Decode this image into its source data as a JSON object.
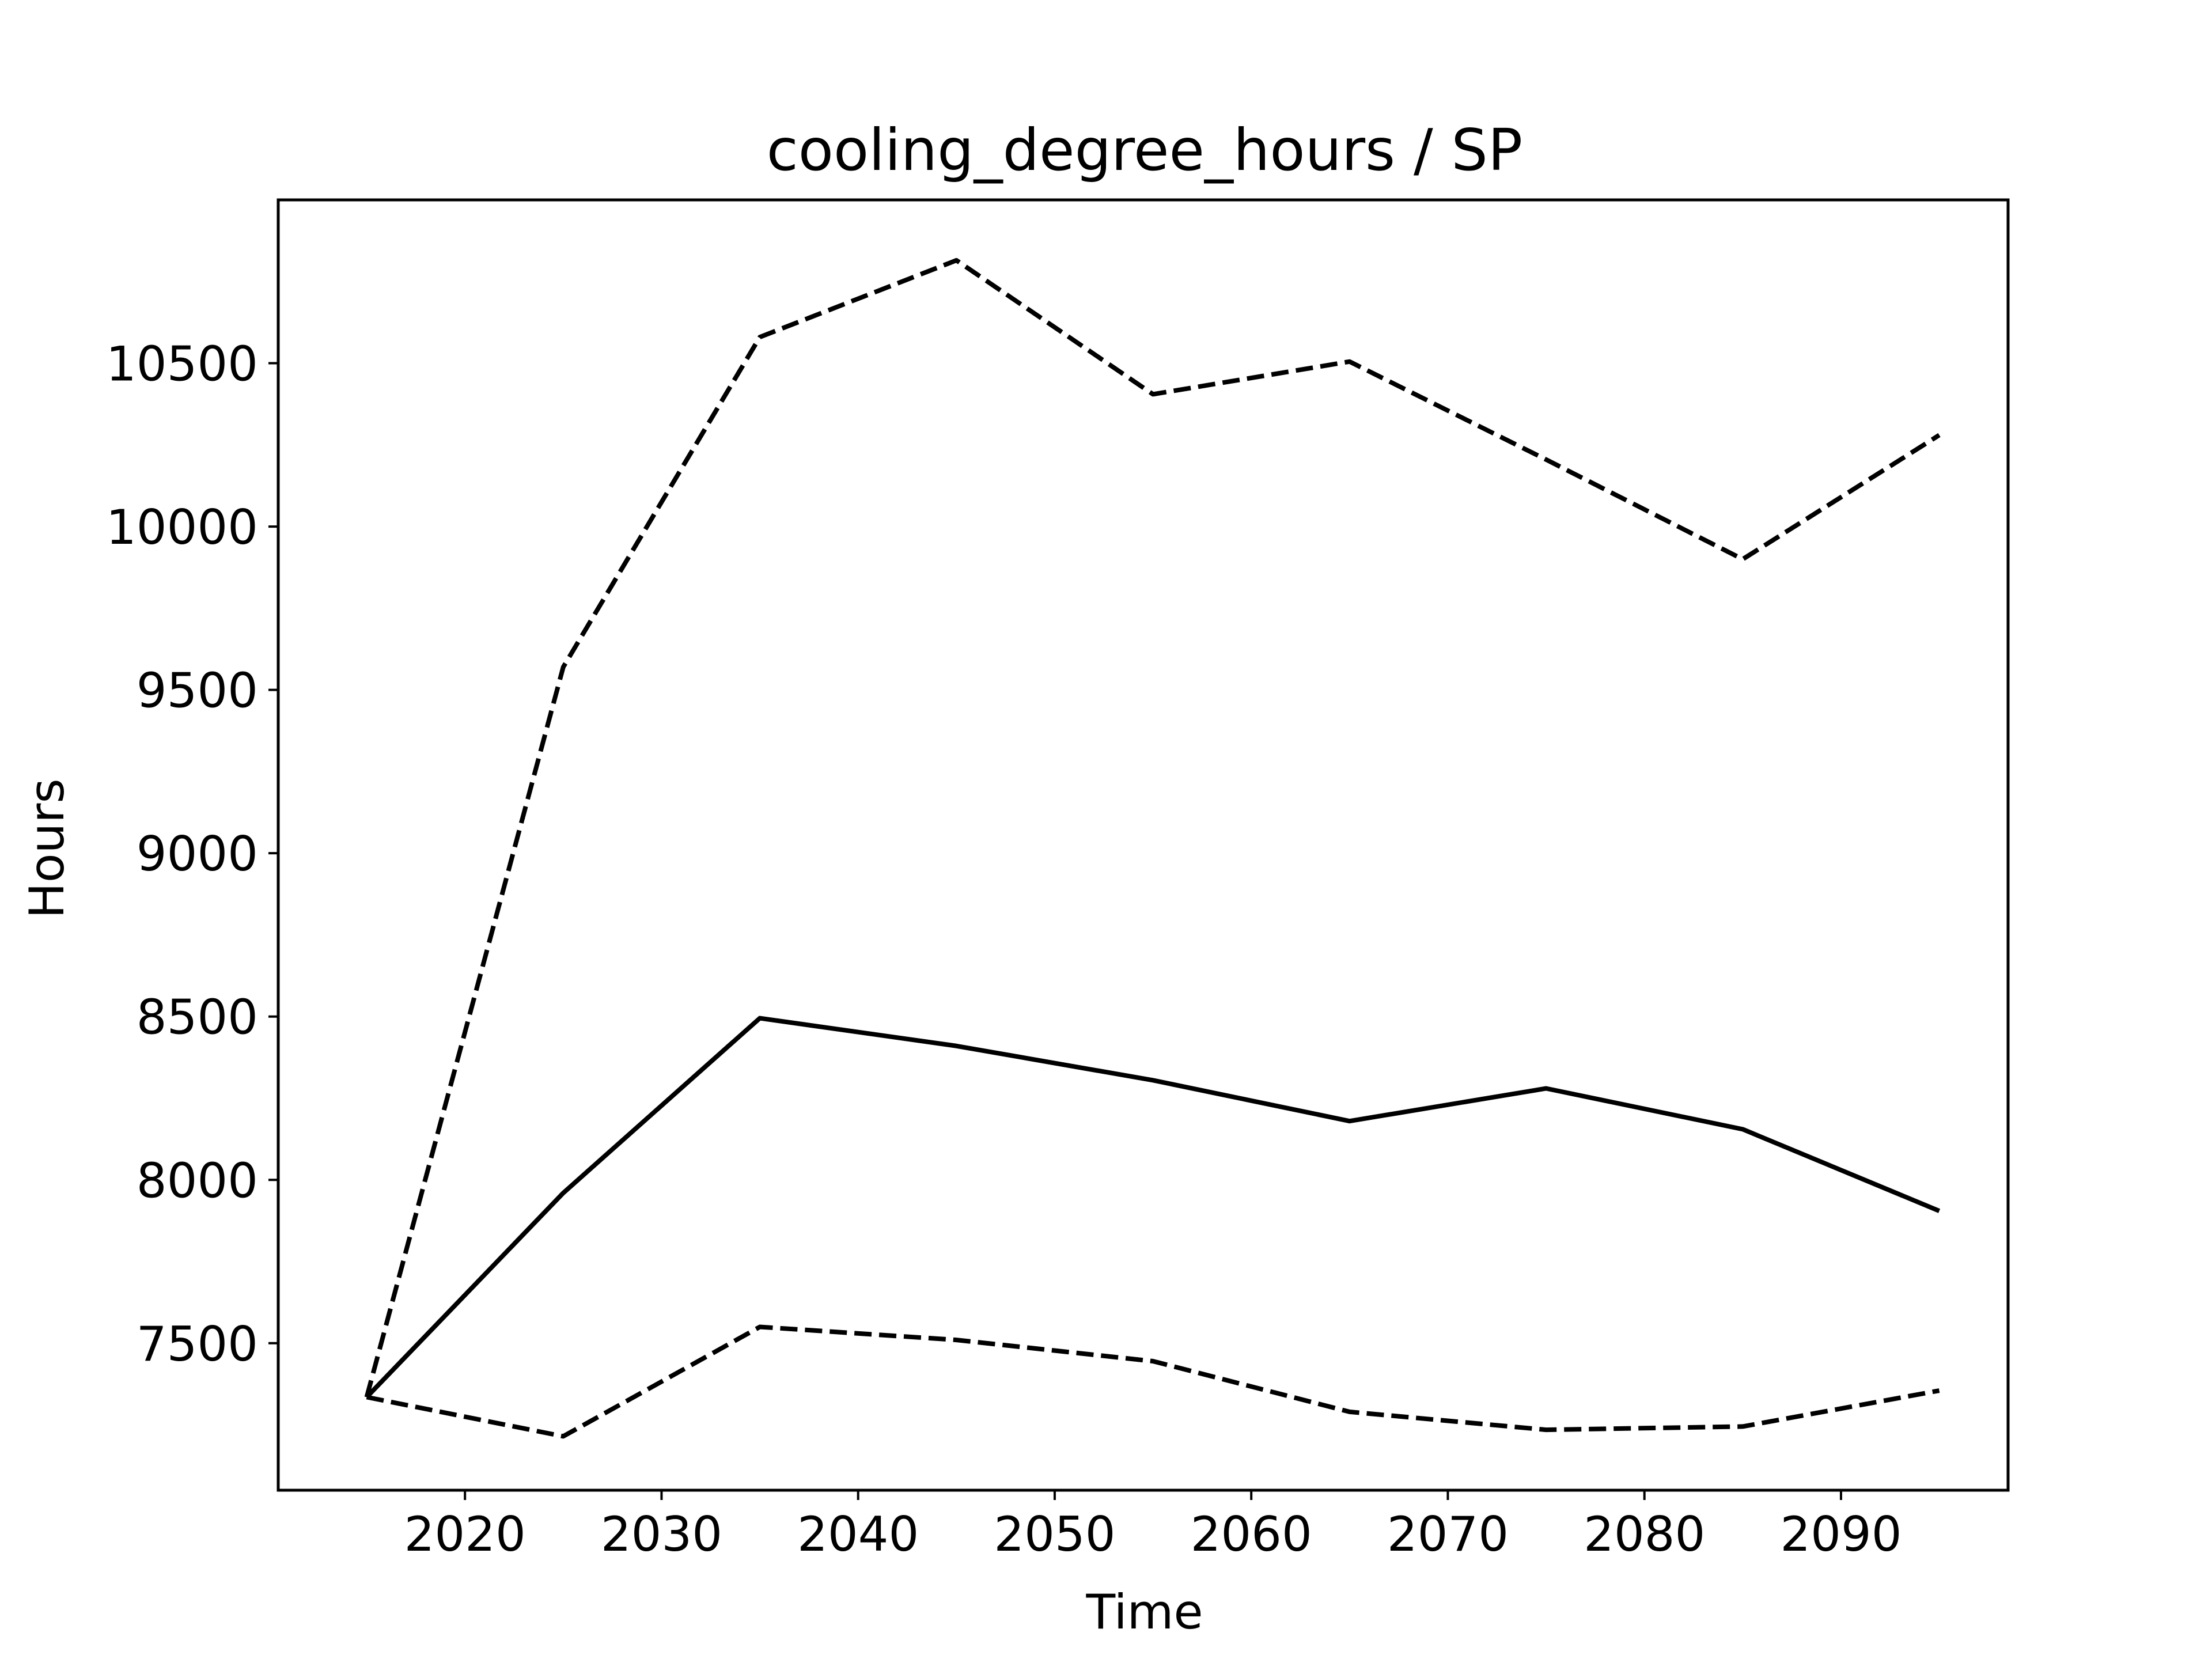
{
  "chart_data": {
    "type": "line",
    "title": "cooling_degree_hours / SP",
    "xlabel": "Time",
    "ylabel": "Hours",
    "xlim": [
      2010.5,
      2098.5
    ],
    "ylim": [
      7050,
      11000
    ],
    "xticks": [
      2020,
      2030,
      2040,
      2050,
      2060,
      2070,
      2080,
      2090
    ],
    "yticks": [
      7500,
      8000,
      8500,
      9000,
      9500,
      10000,
      10500
    ],
    "grid": false,
    "legend": "none",
    "x": [
      2015,
      2025,
      2035,
      2045,
      2055,
      2065,
      2075,
      2085,
      2095
    ],
    "series": [
      {
        "line_style": "dashed",
        "color": "#000000",
        "values": [
          7335,
          9570,
          10580,
          10815,
          10405,
          10505,
          10205,
          9900,
          10280
        ]
      },
      {
        "line_style": "solid",
        "color": "#000000",
        "values": [
          7335,
          7960,
          8495,
          8410,
          8305,
          8180,
          8280,
          8155,
          7905
        ]
      },
      {
        "line_style": "dashed",
        "color": "#000000",
        "values": [
          7335,
          7215,
          7550,
          7510,
          7445,
          7290,
          7235,
          7245,
          7355
        ]
      }
    ]
  }
}
